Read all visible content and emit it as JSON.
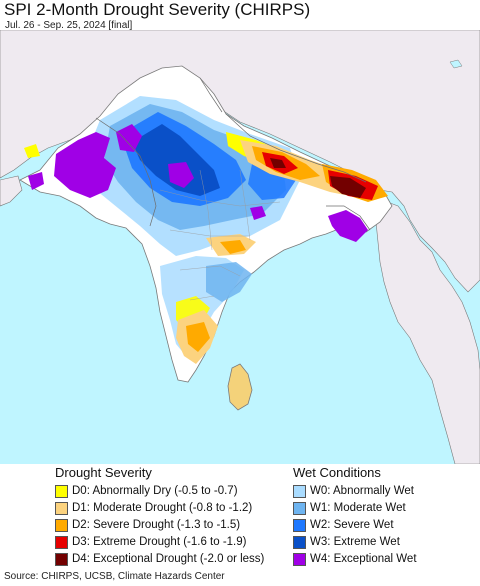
{
  "header": {
    "title": "SPI 2-Month Drought Severity (CHIRPS)",
    "subtitle": "Jul. 26 - Sep. 25, 2024 [final]"
  },
  "legend": {
    "drought": {
      "title": "Drought Severity",
      "items": [
        {
          "label": "D0: Abnormally Dry (-0.5 to -0.7)",
          "color": "#ffff00"
        },
        {
          "label": "D1: Moderate Drought (-0.8 to -1.2)",
          "color": "#fcd37f"
        },
        {
          "label": "D2: Severe Drought (-1.3 to -1.5)",
          "color": "#ffaa00"
        },
        {
          "label": "D3: Extreme Drought (-1.6 to -1.9)",
          "color": "#e60000"
        },
        {
          "label": "D4: Exceptional Drought (-2.0 or less)",
          "color": "#730000"
        }
      ]
    },
    "wet": {
      "title": "Wet Conditions",
      "items": [
        {
          "label": "W0: Abnormally Wet",
          "color": "#aadcff"
        },
        {
          "label": "W1: Moderate Wet",
          "color": "#6eb4f0"
        },
        {
          "label": "W2: Severe Wet",
          "color": "#1e78ff"
        },
        {
          "label": "W3: Extreme Wet",
          "color": "#0a50c8"
        },
        {
          "label": "W4: Exceptional Wet",
          "color": "#a000e6"
        }
      ]
    }
  },
  "map_colors": {
    "ocean": "#bff5ff",
    "outside_land": "#efeaf0",
    "normal": "#ffffff",
    "border": "#7a7a7a"
  },
  "footer": {
    "source": "Source: CHIRPS, UCSB, Climate Hazards Center"
  }
}
